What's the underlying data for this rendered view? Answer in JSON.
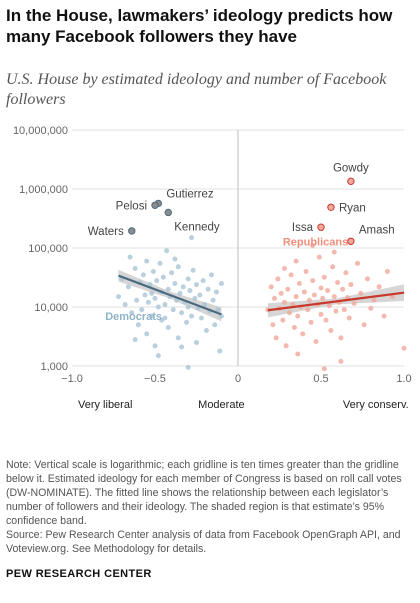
{
  "title": "In the House, lawmakers’ ideology predicts how many Facebook followers they have",
  "subtitle": "U.S. House by estimated ideology and number of Facebook followers",
  "note": "Note: Vertical scale is logarithmic; each gridline is ten times greater than the gridline below it. Estimated ideology for each member of Congress is based on roll call votes (DW-NOMINATE). The fitted line shows the relationship between each legislator’s number of followers and their ideology. The shaded region is that estimate’s 95% confidence band.",
  "source": "Source: Pew Research Center analysis of data from Facebook OpenGraph API, and Voteview.org. See Methodology for details.",
  "organization": "PEW RESEARCH CENTER",
  "colors": {
    "democrats": "#a9c4d6",
    "democrats_line": "#4a6a80",
    "republicans": "#f1a89a",
    "republicans_line": "#c8382c",
    "band": "#cfcfcf",
    "grid": "#e2e2e2",
    "highlight_fill": "#8c8c8c"
  },
  "chart_data": {
    "type": "scatter",
    "y_scale": "log",
    "xlim": [
      -1.0,
      1.0
    ],
    "ylim": [
      1000,
      10000000
    ],
    "x_ticks": [
      -1.0,
      -0.5,
      0,
      0.5,
      1.0
    ],
    "x_tick_labels": [
      "−1.0",
      "−0.5",
      "0",
      "0.5",
      "1.0"
    ],
    "y_ticks": [
      1000,
      10000,
      100000,
      1000000,
      10000000
    ],
    "y_tick_labels": [
      "1,000",
      "10,000",
      "100,000",
      "1,000,000",
      "10,000,000"
    ],
    "x_category_labels": [
      {
        "x": -0.8,
        "label": "Very liberal"
      },
      {
        "x": -0.1,
        "label": "Moderate"
      },
      {
        "x": 0.83,
        "label": "Very conserv."
      }
    ],
    "grid": true,
    "series": [
      {
        "name": "Democrats",
        "trend": {
          "x": [
            -0.72,
            -0.1
          ],
          "y": [
            34000,
            7500
          ]
        },
        "band_halfwidth_log": [
          0.1,
          0.06,
          0.12
        ],
        "points": [
          {
            "x": -0.72,
            "y": 15000
          },
          {
            "x": -0.7,
            "y": 30000
          },
          {
            "x": -0.68,
            "y": 11000
          },
          {
            "x": -0.66,
            "y": 22000
          },
          {
            "x": -0.65,
            "y": 70000
          },
          {
            "x": -0.64,
            "y": 8000
          },
          {
            "x": -0.62,
            "y": 45000
          },
          {
            "x": -0.61,
            "y": 13000
          },
          {
            "x": -0.6,
            "y": 5000
          },
          {
            "x": -0.59,
            "y": 26000
          },
          {
            "x": -0.58,
            "y": 9000
          },
          {
            "x": -0.57,
            "y": 35000
          },
          {
            "x": -0.56,
            "y": 16000
          },
          {
            "x": -0.55,
            "y": 3500
          },
          {
            "x": -0.55,
            "y": 60000
          },
          {
            "x": -0.54,
            "y": 12000
          },
          {
            "x": -0.53,
            "y": 24000
          },
          {
            "x": -0.52,
            "y": 7000
          },
          {
            "x": -0.51,
            "y": 40000
          },
          {
            "x": -0.5,
            "y": 14000
          },
          {
            "x": -0.5,
            "y": 2200
          },
          {
            "x": -0.49,
            "y": 28000
          },
          {
            "x": -0.48,
            "y": 10000
          },
          {
            "x": -0.47,
            "y": 55000
          },
          {
            "x": -0.46,
            "y": 18000
          },
          {
            "x": -0.46,
            "y": 6000
          },
          {
            "x": -0.45,
            "y": 32000
          },
          {
            "x": -0.44,
            "y": 11000
          },
          {
            "x": -0.43,
            "y": 90000
          },
          {
            "x": -0.42,
            "y": 20000
          },
          {
            "x": -0.42,
            "y": 4500
          },
          {
            "x": -0.41,
            "y": 15000
          },
          {
            "x": -0.4,
            "y": 38000
          },
          {
            "x": -0.39,
            "y": 9000
          },
          {
            "x": -0.38,
            "y": 25000
          },
          {
            "x": -0.37,
            "y": 13000
          },
          {
            "x": -0.36,
            "y": 3000
          },
          {
            "x": -0.36,
            "y": 48000
          },
          {
            "x": -0.35,
            "y": 17000
          },
          {
            "x": -0.34,
            "y": 8000
          },
          {
            "x": -0.33,
            "y": 22000
          },
          {
            "x": -0.32,
            "y": 12000
          },
          {
            "x": -0.31,
            "y": 5500
          },
          {
            "x": -0.3,
            "y": 30000
          },
          {
            "x": -0.3,
            "y": 10000
          },
          {
            "x": -0.29,
            "y": 19000
          },
          {
            "x": -0.28,
            "y": 7000
          },
          {
            "x": -0.27,
            "y": 42000
          },
          {
            "x": -0.26,
            "y": 14000
          },
          {
            "x": -0.25,
            "y": 2500
          },
          {
            "x": -0.25,
            "y": 24000
          },
          {
            "x": -0.24,
            "y": 9500
          },
          {
            "x": -0.23,
            "y": 16000
          },
          {
            "x": -0.22,
            "y": 6500
          },
          {
            "x": -0.21,
            "y": 28000
          },
          {
            "x": -0.2,
            "y": 11000
          },
          {
            "x": -0.19,
            "y": 4000
          },
          {
            "x": -0.18,
            "y": 20000
          },
          {
            "x": -0.17,
            "y": 8500
          },
          {
            "x": -0.16,
            "y": 35000
          },
          {
            "x": -0.15,
            "y": 13000
          },
          {
            "x": -0.14,
            "y": 5000
          },
          {
            "x": -0.13,
            "y": 18000
          },
          {
            "x": -0.12,
            "y": 9000
          },
          {
            "x": -0.11,
            "y": 1800
          },
          {
            "x": -0.1,
            "y": 25000
          },
          {
            "x": -0.1,
            "y": 7000
          },
          {
            "x": -0.3,
            "y": 950
          },
          {
            "x": -0.48,
            "y": 1500
          },
          {
            "x": -0.62,
            "y": 2800
          },
          {
            "x": -0.38,
            "y": 65000
          },
          {
            "x": -0.28,
            "y": 150000
          },
          {
            "x": -0.44,
            "y": 6500
          },
          {
            "x": -0.52,
            "y": 17000
          },
          {
            "x": -0.34,
            "y": 2100
          }
        ]
      },
      {
        "name": "Republicans",
        "trend": {
          "x": [
            0.18,
            1.0
          ],
          "y": [
            8800,
            17500
          ]
        },
        "band_halfwidth_log": [
          0.12,
          0.05,
          0.14
        ],
        "points": [
          {
            "x": 0.18,
            "y": 9000
          },
          {
            "x": 0.2,
            "y": 22000
          },
          {
            "x": 0.21,
            "y": 5000
          },
          {
            "x": 0.22,
            "y": 14000
          },
          {
            "x": 0.23,
            "y": 3000
          },
          {
            "x": 0.24,
            "y": 30000
          },
          {
            "x": 0.25,
            "y": 9500
          },
          {
            "x": 0.26,
            "y": 17000
          },
          {
            "x": 0.27,
            "y": 6000
          },
          {
            "x": 0.28,
            "y": 45000
          },
          {
            "x": 0.28,
            "y": 12000
          },
          {
            "x": 0.29,
            "y": 2200
          },
          {
            "x": 0.3,
            "y": 20000
          },
          {
            "x": 0.31,
            "y": 8000
          },
          {
            "x": 0.32,
            "y": 35000
          },
          {
            "x": 0.33,
            "y": 11000
          },
          {
            "x": 0.34,
            "y": 4500
          },
          {
            "x": 0.35,
            "y": 60000
          },
          {
            "x": 0.35,
            "y": 15000
          },
          {
            "x": 0.36,
            "y": 7000
          },
          {
            "x": 0.37,
            "y": 25000
          },
          {
            "x": 0.38,
            "y": 10000
          },
          {
            "x": 0.39,
            "y": 3500
          },
          {
            "x": 0.4,
            "y": 18000
          },
          {
            "x": 0.41,
            "y": 40000
          },
          {
            "x": 0.42,
            "y": 9000
          },
          {
            "x": 0.43,
            "y": 13000
          },
          {
            "x": 0.44,
            "y": 5500
          },
          {
            "x": 0.45,
            "y": 28000
          },
          {
            "x": 0.46,
            "y": 16000
          },
          {
            "x": 0.47,
            "y": 2600
          },
          {
            "x": 0.48,
            "y": 11000
          },
          {
            "x": 0.49,
            "y": 70000
          },
          {
            "x": 0.5,
            "y": 21000
          },
          {
            "x": 0.5,
            "y": 7500
          },
          {
            "x": 0.51,
            "y": 14000
          },
          {
            "x": 0.52,
            "y": 32000
          },
          {
            "x": 0.53,
            "y": 6000
          },
          {
            "x": 0.54,
            "y": 19000
          },
          {
            "x": 0.55,
            "y": 10500
          },
          {
            "x": 0.56,
            "y": 4000
          },
          {
            "x": 0.57,
            "y": 48000
          },
          {
            "x": 0.58,
            "y": 15000
          },
          {
            "x": 0.59,
            "y": 8500
          },
          {
            "x": 0.6,
            "y": 26000
          },
          {
            "x": 0.61,
            "y": 12000
          },
          {
            "x": 0.62,
            "y": 3000
          },
          {
            "x": 0.63,
            "y": 20000
          },
          {
            "x": 0.64,
            "y": 9000
          },
          {
            "x": 0.65,
            "y": 38000
          },
          {
            "x": 0.66,
            "y": 14500
          },
          {
            "x": 0.67,
            "y": 6500
          },
          {
            "x": 0.68,
            "y": 24000
          },
          {
            "x": 0.7,
            "y": 11500
          },
          {
            "x": 0.72,
            "y": 55000
          },
          {
            "x": 0.74,
            "y": 17000
          },
          {
            "x": 0.76,
            "y": 5000
          },
          {
            "x": 0.78,
            "y": 30000
          },
          {
            "x": 0.8,
            "y": 9500
          },
          {
            "x": 0.82,
            "y": 13000
          },
          {
            "x": 0.85,
            "y": 22000
          },
          {
            "x": 0.88,
            "y": 7000
          },
          {
            "x": 0.9,
            "y": 40000
          },
          {
            "x": 0.93,
            "y": 15000
          },
          {
            "x": 1.0,
            "y": 2000
          },
          {
            "x": 0.45,
            "y": 110000
          },
          {
            "x": 0.58,
            "y": 85000
          },
          {
            "x": 0.62,
            "y": 1200
          },
          {
            "x": 0.52,
            "y": 900
          },
          {
            "x": 0.36,
            "y": 1600
          }
        ]
      }
    ],
    "labeled_points": [
      {
        "name": "Gutierrez",
        "party": "D",
        "x": -0.48,
        "y": 570000
      },
      {
        "name": "Pelosi",
        "party": "D",
        "x": -0.5,
        "y": 530000
      },
      {
        "name": "Kennedy",
        "party": "D",
        "x": -0.42,
        "y": 400000
      },
      {
        "name": "Waters",
        "party": "D",
        "x": -0.64,
        "y": 195000
      },
      {
        "name": "Gowdy",
        "party": "R",
        "x": 0.68,
        "y": 1350000
      },
      {
        "name": "Ryan",
        "party": "R",
        "x": 0.56,
        "y": 490000
      },
      {
        "name": "Issa",
        "party": "R",
        "x": 0.5,
        "y": 225000
      },
      {
        "name": "Amash",
        "party": "R",
        "x": 0.68,
        "y": 130000
      }
    ],
    "series_labels": [
      {
        "text": "Democrats",
        "x": -0.8,
        "y": 7000
      },
      {
        "text": "Republicans",
        "x": 0.27,
        "y": 130000
      }
    ]
  }
}
